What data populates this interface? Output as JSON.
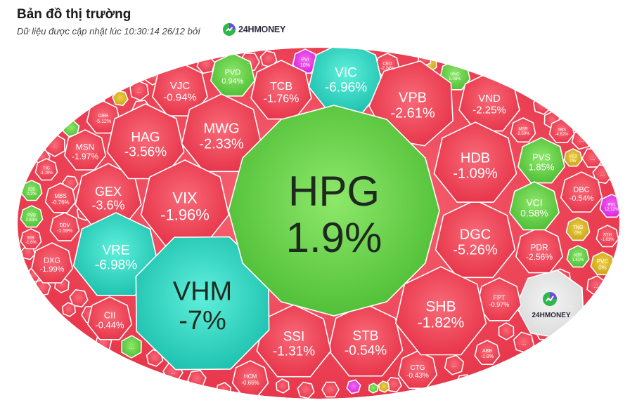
{
  "header": {
    "title": "Bản đồ thị trường",
    "subtitle": "Dữ liệu được cập nhật lúc 10:30:14 26/12 bởi",
    "brand": "24HMONEY"
  },
  "colors": {
    "up": "#5dc845",
    "down": "#ec3c50",
    "ceiling": "#e534e5",
    "floor": "#33cfbf",
    "reference": "#d8b21c",
    "empty": "#e6e6e6"
  },
  "chart_data": {
    "type": "heatmap",
    "tiles": [
      {
        "symbol": "HPG",
        "change": "1.9%",
        "status": "up"
      },
      {
        "symbol": "VHM",
        "change": "-7%",
        "status": "floor"
      },
      {
        "symbol": "VIC",
        "change": "-6.96%",
        "status": "floor"
      },
      {
        "symbol": "VRE",
        "change": "-6.98%",
        "status": "floor"
      },
      {
        "symbol": "VPB",
        "change": "-2.61%",
        "status": "down"
      },
      {
        "symbol": "HDB",
        "change": "-1.09%",
        "status": "down"
      },
      {
        "symbol": "DGC",
        "change": "-5.26%",
        "status": "down"
      },
      {
        "symbol": "SHB",
        "change": "-1.82%",
        "status": "down"
      },
      {
        "symbol": "STB",
        "change": "-0.54%",
        "status": "down"
      },
      {
        "symbol": "SSI",
        "change": "-1.31%",
        "status": "down"
      },
      {
        "symbol": "VIX",
        "change": "-1.96%",
        "status": "down"
      },
      {
        "symbol": "MWG",
        "change": "-2.33%",
        "status": "down"
      },
      {
        "symbol": "HAG",
        "change": "-3.56%",
        "status": "down"
      },
      {
        "symbol": "GEX",
        "change": "-3.6%",
        "status": "down"
      },
      {
        "symbol": "TCB",
        "change": "-1.76%",
        "status": "down"
      },
      {
        "symbol": "VJC",
        "change": "-0.94%",
        "status": "down"
      },
      {
        "symbol": "PVD",
        "change": "0.94%",
        "status": "up"
      },
      {
        "symbol": "VND",
        "change": "-2.25%",
        "status": "down"
      },
      {
        "symbol": "PVS",
        "change": "1.85%",
        "status": "up"
      },
      {
        "symbol": "VCI",
        "change": "0.58%",
        "status": "up"
      },
      {
        "symbol": "DBC",
        "change": "-0.54%",
        "status": "down"
      },
      {
        "symbol": "PDR",
        "change": "-2.56%",
        "status": "down"
      },
      {
        "symbol": "FPT",
        "change": "-0.97%",
        "status": "down"
      },
      {
        "symbol": "CTG",
        "change": "-0.43%",
        "status": "down"
      },
      {
        "symbol": "HCM",
        "change": "-0.66%",
        "status": "down"
      },
      {
        "symbol": "CII",
        "change": "-0.44%",
        "status": "down"
      },
      {
        "symbol": "DXG",
        "change": "-1.99%",
        "status": "down"
      },
      {
        "symbol": "MSN",
        "change": "-1.97%",
        "status": "down"
      },
      {
        "symbol": "MBS",
        "change": "-0.76%",
        "status": "down"
      },
      {
        "symbol": "DDV",
        "change": "-1.59%",
        "status": "down"
      },
      {
        "symbol": "GEE",
        "change": "-5.12%",
        "status": "down"
      },
      {
        "symbol": "PVI",
        "change": "10%",
        "status": "ceiling"
      },
      {
        "symbol": "CEO",
        "change": "-2.24%",
        "status": "down"
      },
      {
        "symbol": "HNG",
        "change": "5.08%",
        "status": "up"
      },
      {
        "symbol": "MSR",
        "change": "-3.59%",
        "status": "down"
      },
      {
        "symbol": "SBS",
        "change": "-4.62%",
        "status": "down"
      },
      {
        "symbol": "VC3",
        "change": "0%",
        "status": "reference"
      },
      {
        "symbol": "PVL",
        "change": "12.12%",
        "status": "ceiling"
      },
      {
        "symbol": "TNG",
        "change": "0%",
        "status": "reference"
      },
      {
        "symbol": "STH",
        "change": "-1.03%",
        "status": "down"
      },
      {
        "symbol": "NTP",
        "change": "1.41%",
        "status": "up"
      },
      {
        "symbol": "PVC",
        "change": "0%",
        "status": "reference"
      },
      {
        "symbol": "ABB",
        "change": "-1.9%",
        "status": "down"
      },
      {
        "symbol": "TIG",
        "change": "-1.19%",
        "status": "down"
      },
      {
        "symbol": "IDS",
        "change": "0.2%",
        "status": "up"
      },
      {
        "symbol": "PVB",
        "change": "0.63%",
        "status": "up"
      },
      {
        "symbol": "EIB",
        "change": "-1.6%",
        "status": "down"
      }
    ],
    "more_label": "..."
  }
}
